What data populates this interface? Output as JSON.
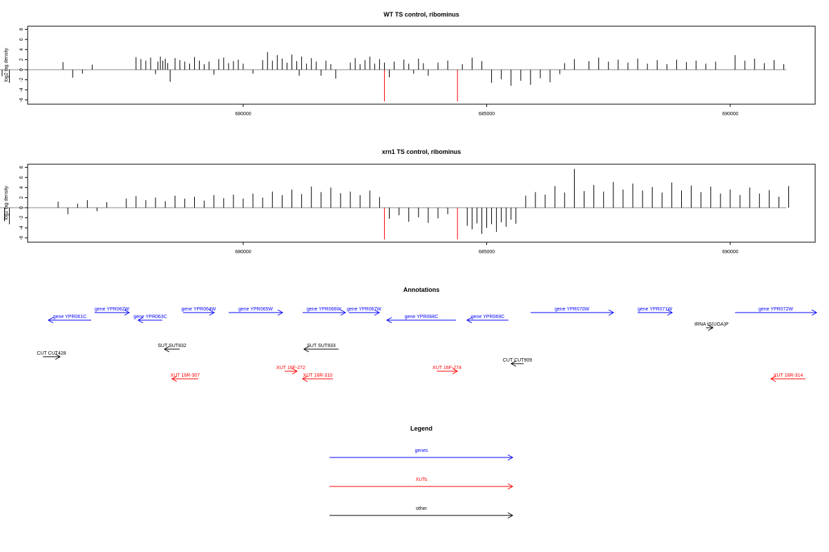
{
  "chart_data": [
    {
      "type": "bar",
      "title": "WT TS control, ribominus",
      "ylabel": "log2 tag density",
      "xlabel": "",
      "xlim": [
        670000,
        690000
      ],
      "ylim": [
        -6,
        8
      ],
      "yticks": [
        -6,
        -4,
        -2,
        0,
        2,
        4,
        6,
        8
      ],
      "xticks": [
        680000,
        685000,
        690000
      ],
      "xtick_labels": [
        "680000",
        "685000",
        "690000"
      ],
      "bars": [
        [
          671050,
          -1.1
        ],
        [
          671100,
          -0.6
        ],
        [
          671200,
          -2.4
        ],
        [
          671400,
          1.4
        ],
        [
          671500,
          -2.7
        ],
        [
          671650,
          -0.9
        ],
        [
          671950,
          -0.8
        ],
        [
          672000,
          2.2
        ],
        [
          672250,
          -2.8
        ],
        [
          672500,
          -1.0
        ],
        [
          672600,
          -0.8
        ],
        [
          673000,
          2.8
        ],
        [
          673050,
          3.4
        ],
        [
          673100,
          4.8
        ],
        [
          673150,
          2.1
        ],
        [
          673200,
          3.6
        ],
        [
          673250,
          2.9
        ],
        [
          673300,
          1.8
        ],
        [
          673400,
          2.4
        ],
        [
          673450,
          5.4
        ],
        [
          673500,
          2.6
        ],
        [
          673550,
          3.8
        ],
        [
          673600,
          4.9
        ],
        [
          673650,
          2.7
        ],
        [
          673700,
          3.5
        ],
        [
          673750,
          1.9
        ],
        [
          673800,
          2.5
        ],
        [
          673850,
          -0.7
        ],
        [
          673900,
          5.7
        ],
        [
          673950,
          2.2
        ],
        [
          674000,
          -2.4
        ],
        [
          674150,
          -1.2
        ],
        [
          674200,
          -1.8
        ],
        [
          674250,
          -2.6
        ],
        [
          674300,
          -3.2
        ],
        [
          674350,
          -2.0
        ],
        [
          674400,
          -2.8
        ],
        [
          674450,
          -3.5
        ],
        [
          674500,
          -2.4
        ],
        [
          674550,
          -3.0
        ],
        [
          674600,
          -1.6
        ],
        [
          674650,
          -2.9
        ],
        [
          674700,
          -4.1
        ],
        [
          674750,
          -3.3
        ],
        [
          674800,
          -2.2
        ],
        [
          674950,
          -0.6
        ],
        [
          675050,
          -1.3
        ],
        [
          675200,
          -2.6
        ],
        [
          676300,
          1.5
        ],
        [
          676500,
          -1.6
        ],
        [
          676700,
          -0.8
        ],
        [
          676900,
          1.0
        ],
        [
          677800,
          2.5
        ],
        [
          677900,
          2.1
        ],
        [
          678000,
          1.8
        ],
        [
          678100,
          2.4
        ],
        [
          678200,
          -0.9
        ],
        [
          678250,
          1.6
        ],
        [
          678300,
          2.6
        ],
        [
          678350,
          1.8
        ],
        [
          678400,
          2.2
        ],
        [
          678450,
          1.3
        ],
        [
          678500,
          -2.4
        ],
        [
          678600,
          2.3
        ],
        [
          678700,
          1.9
        ],
        [
          678800,
          1.6
        ],
        [
          678900,
          1.2
        ],
        [
          679000,
          2.5
        ],
        [
          679100,
          1.8
        ],
        [
          679200,
          1.1
        ],
        [
          679300,
          1.6
        ],
        [
          679400,
          -1.0
        ],
        [
          679500,
          2.1
        ],
        [
          679600,
          2.4
        ],
        [
          679700,
          1.3
        ],
        [
          679800,
          1.7
        ],
        [
          679900,
          2.0
        ],
        [
          680000,
          1.2
        ],
        [
          680200,
          -0.8
        ],
        [
          680400,
          1.9
        ],
        [
          680500,
          3.5
        ],
        [
          680600,
          1.8
        ],
        [
          680700,
          2.9
        ],
        [
          680800,
          2.2
        ],
        [
          680900,
          1.4
        ],
        [
          681000,
          3.0
        ],
        [
          681100,
          1.7
        ],
        [
          681150,
          -1.2
        ],
        [
          681200,
          2.6
        ],
        [
          681300,
          1.2
        ],
        [
          681400,
          2.3
        ],
        [
          681500,
          1.6
        ],
        [
          681600,
          -1.2
        ],
        [
          681700,
          1.8
        ],
        [
          681800,
          1.1
        ],
        [
          681900,
          -1.8
        ],
        [
          682200,
          1.4
        ],
        [
          682300,
          2.3
        ],
        [
          682400,
          1.1
        ],
        [
          682500,
          1.9
        ],
        [
          682600,
          2.6
        ],
        [
          682700,
          1.2
        ],
        [
          682800,
          2.1
        ],
        [
          682900,
          1.4
        ],
        [
          683000,
          -1.5
        ],
        [
          683100,
          1.6
        ],
        [
          683300,
          2.0
        ],
        [
          683400,
          1.2
        ],
        [
          683500,
          -0.8
        ],
        [
          683600,
          2.2
        ],
        [
          683700,
          1.3
        ],
        [
          683800,
          -1.2
        ],
        [
          684000,
          1.4
        ],
        [
          684200,
          1.8
        ],
        [
          684500,
          1.1
        ],
        [
          684700,
          2.4
        ],
        [
          684900,
          1.7
        ],
        [
          685100,
          -2.6
        ],
        [
          685300,
          -1.9
        ],
        [
          685500,
          -3.2
        ],
        [
          685700,
          -2.2
        ],
        [
          685900,
          -3.0
        ],
        [
          686100,
          -1.7
        ],
        [
          686300,
          -2.5
        ],
        [
          686500,
          -0.9
        ],
        [
          686600,
          1.3
        ],
        [
          686800,
          2.1
        ],
        [
          687100,
          1.7
        ],
        [
          687300,
          2.4
        ],
        [
          687500,
          1.6
        ],
        [
          687700,
          2.0
        ],
        [
          687900,
          1.4
        ],
        [
          688100,
          2.2
        ],
        [
          688300,
          1.2
        ],
        [
          688500,
          1.9
        ],
        [
          688700,
          1.1
        ],
        [
          688900,
          2.0
        ],
        [
          689100,
          1.5
        ],
        [
          689300,
          1.8
        ],
        [
          689500,
          1.2
        ],
        [
          689700,
          1.6
        ],
        [
          690100,
          2.9
        ],
        [
          690300,
          1.8
        ],
        [
          690500,
          2.2
        ],
        [
          690700,
          1.3
        ],
        [
          690900,
          1.9
        ],
        [
          691100,
          1.1
        ]
      ],
      "highlight_bars": [
        [
          682900,
          -6.3
        ],
        [
          684400,
          -6.3
        ]
      ]
    },
    {
      "type": "bar",
      "title": "xrn1 TS control, ribominus",
      "ylabel": "log2 tag density",
      "xlabel": "",
      "xlim": [
        670000,
        690000
      ],
      "ylim": [
        -6,
        8
      ],
      "yticks": [
        -6,
        -4,
        -2,
        0,
        2,
        4,
        6,
        8
      ],
      "xticks": [
        680000,
        685000,
        690000
      ],
      "xtick_labels": [
        "680000",
        "685000",
        "690000"
      ],
      "bars": [
        [
          671050,
          -2.9
        ],
        [
          671100,
          -2.2
        ],
        [
          671200,
          -1.4
        ],
        [
          671300,
          -3.0
        ],
        [
          671400,
          -2.5
        ],
        [
          671500,
          -1.8
        ],
        [
          671600,
          -3.4
        ],
        [
          671700,
          -2.1
        ],
        [
          671800,
          -2.6
        ],
        [
          671900,
          -1.2
        ],
        [
          672000,
          -3.1
        ],
        [
          672100,
          1.5
        ],
        [
          672250,
          -2.4
        ],
        [
          672400,
          -1.9
        ],
        [
          672500,
          -3.5
        ],
        [
          673000,
          2.7
        ],
        [
          673100,
          3.4
        ],
        [
          673200,
          1.9
        ],
        [
          673300,
          4.1
        ],
        [
          673400,
          2.6
        ],
        [
          673500,
          3.8
        ],
        [
          673600,
          1.4
        ],
        [
          673700,
          4.7
        ],
        [
          673800,
          2.4
        ],
        [
          673900,
          6.5
        ],
        [
          674000,
          2.1
        ],
        [
          674100,
          -1.8
        ],
        [
          674200,
          -2.6
        ],
        [
          674300,
          -3.4
        ],
        [
          674400,
          -2.9
        ],
        [
          674500,
          -4.2
        ],
        [
          674600,
          -3.1
        ],
        [
          674700,
          -3.8
        ],
        [
          674800,
          -2.2
        ],
        [
          674900,
          -3.5
        ],
        [
          675000,
          -4.0
        ],
        [
          675100,
          -2.7
        ],
        [
          675200,
          -3.3
        ],
        [
          676200,
          1.2
        ],
        [
          676400,
          -1.3
        ],
        [
          676600,
          0.8
        ],
        [
          676800,
          1.5
        ],
        [
          677000,
          -0.7
        ],
        [
          677200,
          1.1
        ],
        [
          677600,
          1.8
        ],
        [
          677800,
          2.3
        ],
        [
          678000,
          1.5
        ],
        [
          678200,
          2.0
        ],
        [
          678400,
          1.3
        ],
        [
          678600,
          2.4
        ],
        [
          678800,
          1.8
        ],
        [
          679000,
          2.2
        ],
        [
          679200,
          1.4
        ],
        [
          679400,
          2.5
        ],
        [
          679600,
          1.9
        ],
        [
          679800,
          2.6
        ],
        [
          680000,
          1.8
        ],
        [
          680200,
          2.8
        ],
        [
          680400,
          2.0
        ],
        [
          680600,
          3.2
        ],
        [
          680800,
          2.5
        ],
        [
          681000,
          3.6
        ],
        [
          681200,
          2.7
        ],
        [
          681400,
          4.2
        ],
        [
          681600,
          3.1
        ],
        [
          681800,
          4.0
        ],
        [
          682000,
          2.9
        ],
        [
          682200,
          3.2
        ],
        [
          682400,
          2.5
        ],
        [
          682600,
          3.4
        ],
        [
          682800,
          2.1
        ],
        [
          683000,
          -2.2
        ],
        [
          683200,
          -1.5
        ],
        [
          683400,
          -2.8
        ],
        [
          683600,
          -1.9
        ],
        [
          683800,
          -3.0
        ],
        [
          684000,
          -2.1
        ],
        [
          684200,
          -1.3
        ],
        [
          684600,
          -3.6
        ],
        [
          684700,
          -4.3
        ],
        [
          684800,
          -3.1
        ],
        [
          684900,
          -5.2
        ],
        [
          685000,
          -4.0
        ],
        [
          685100,
          -3.3
        ],
        [
          685200,
          -4.8
        ],
        [
          685300,
          -2.9
        ],
        [
          685400,
          -3.8
        ],
        [
          685500,
          -2.4
        ],
        [
          685600,
          -3.2
        ],
        [
          685800,
          2.4
        ],
        [
          686000,
          3.1
        ],
        [
          686200,
          2.6
        ],
        [
          686400,
          4.3
        ],
        [
          686600,
          3.0
        ],
        [
          686800,
          7.7
        ],
        [
          687000,
          3.3
        ],
        [
          687200,
          4.5
        ],
        [
          687400,
          3.2
        ],
        [
          687600,
          5.1
        ],
        [
          687800,
          3.6
        ],
        [
          688000,
          4.8
        ],
        [
          688200,
          3.4
        ],
        [
          688400,
          4.1
        ],
        [
          688600,
          3.0
        ],
        [
          688800,
          5.0
        ],
        [
          689000,
          3.4
        ],
        [
          689200,
          4.4
        ],
        [
          689400,
          3.1
        ],
        [
          689600,
          4.2
        ],
        [
          689800,
          2.8
        ],
        [
          690000,
          3.6
        ],
        [
          690200,
          2.5
        ],
        [
          690400,
          4.0
        ],
        [
          690600,
          2.8
        ],
        [
          690800,
          3.5
        ],
        [
          691000,
          2.2
        ],
        [
          691200,
          4.3
        ]
      ],
      "highlight_bars": [
        [
          682900,
          -6.3
        ],
        [
          684400,
          -6.3
        ]
      ]
    }
  ],
  "annotations": {
    "title": "Annotations",
    "features": [
      {
        "label": "gene YPR061C",
        "color": "#0000ff",
        "x1": 70,
        "x2": 132,
        "dir": "left",
        "row": 1
      },
      {
        "label": "gene YPR062W",
        "color": "#0000ff",
        "x1": 137,
        "x2": 187,
        "dir": "right",
        "row": 0
      },
      {
        "label": "gene YPR063C",
        "color": "#0000ff",
        "x1": 200,
        "x2": 235,
        "dir": "left",
        "row": 1
      },
      {
        "label": "gene YPR064W",
        "color": "#0000ff",
        "x1": 265,
        "x2": 310,
        "dir": "right",
        "row": 0
      },
      {
        "label": "gene YPR065W",
        "color": "#0000ff",
        "x1": 331,
        "x2": 409,
        "dir": "right",
        "row": 0
      },
      {
        "label": "gene YPR066W",
        "color": "#0000ff",
        "x1": 438,
        "x2": 500,
        "dir": "right",
        "row": 0
      },
      {
        "label": "gene YPR067W",
        "color": "#0000ff",
        "x1": 505,
        "x2": 549,
        "dir": "right",
        "row": 0
      },
      {
        "label": "gene YPR068C",
        "color": "#0000ff",
        "x1": 560,
        "x2": 660,
        "dir": "left",
        "row": 1
      },
      {
        "label": "gene YPR069C",
        "color": "#0000ff",
        "x1": 676,
        "x2": 736,
        "dir": "left",
        "row": 1
      },
      {
        "label": "gene YPR070W",
        "color": "#0000ff",
        "x1": 768,
        "x2": 888,
        "dir": "right",
        "row": 0
      },
      {
        "label": "gene YPR071W",
        "color": "#0000ff",
        "x1": 923,
        "x2": 973,
        "dir": "right",
        "row": 0
      },
      {
        "label": "gene YPR072W",
        "color": "#0000ff",
        "x1": 1064,
        "x2": 1182,
        "dir": "right",
        "row": 0
      },
      {
        "label": "tRNA tS(UGA)P",
        "color": "#000000",
        "x1": 1022,
        "x2": 1032,
        "dir": "right",
        "row": 2
      },
      {
        "label": "SUT SUT832",
        "color": "#000000",
        "x1": 238,
        "x2": 260,
        "dir": "left",
        "row": 3
      },
      {
        "label": "SUT SUT833",
        "color": "#000000",
        "x1": 440,
        "x2": 490,
        "dir": "left",
        "row": 3
      },
      {
        "label": "CUT CUT428",
        "color": "#000000",
        "x1": 62,
        "x2": 87,
        "dir": "right",
        "row": 4
      },
      {
        "label": "CUT CUT909",
        "color": "#000000",
        "x1": 740,
        "x2": 758,
        "dir": "left",
        "row": 5
      },
      {
        "label": "XUT 16F-272",
        "color": "#ff0000",
        "x1": 412,
        "x2": 430,
        "dir": "right",
        "row": 6
      },
      {
        "label": "XUT 16R-307",
        "color": "#ff0000",
        "x1": 249,
        "x2": 287,
        "dir": "left",
        "row": 7
      },
      {
        "label": "XUT 16R-310",
        "color": "#ff0000",
        "x1": 438,
        "x2": 482,
        "dir": "left",
        "row": 7
      },
      {
        "label": "XUT 16F-274",
        "color": "#ff0000",
        "x1": 632,
        "x2": 662,
        "dir": "right",
        "row": 6
      },
      {
        "label": "XUT 16R-314",
        "color": "#ff0000",
        "x1": 1116,
        "x2": 1166,
        "dir": "left",
        "row": 7
      }
    ]
  },
  "legend": {
    "title": "Legend",
    "items": [
      {
        "label": "genes",
        "color": "#0000ff"
      },
      {
        "label": "XUTs",
        "color": "#ff0000"
      },
      {
        "label": "other",
        "color": "#000000"
      }
    ]
  },
  "colors": {
    "bar": "#000000",
    "highlight": "#ff0000",
    "zero_line": "#888888",
    "frame": "#000000"
  }
}
